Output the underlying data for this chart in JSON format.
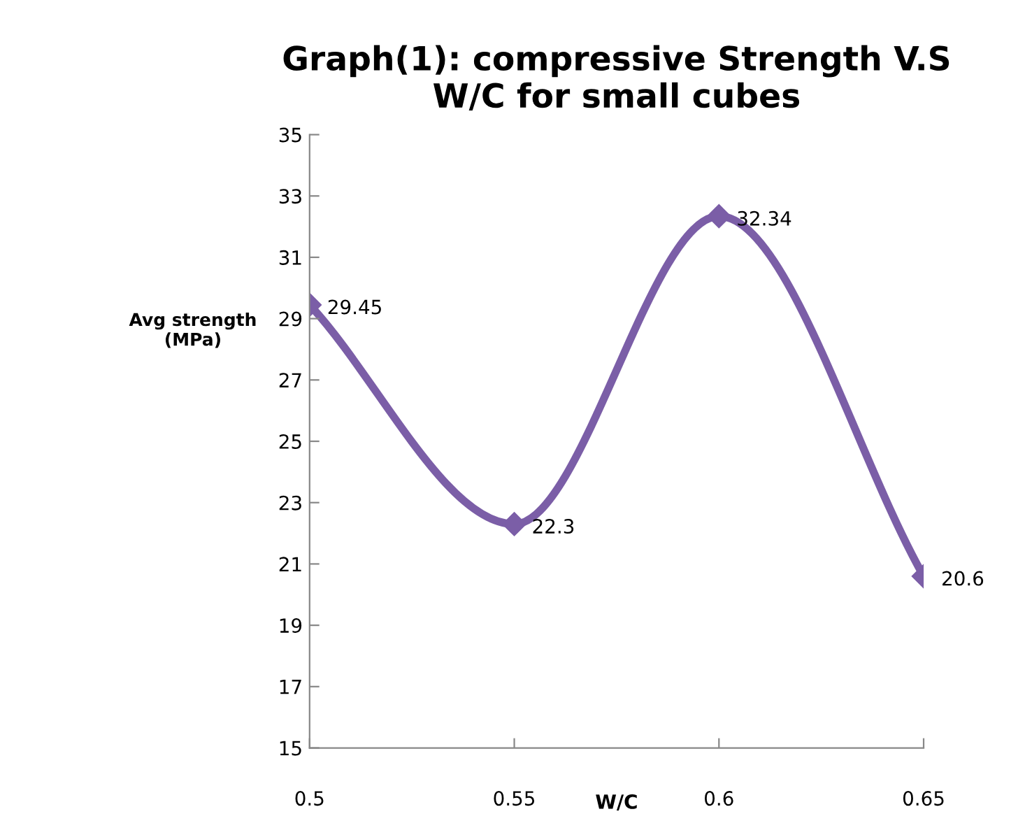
{
  "chart_data": {
    "type": "line",
    "title": "Graph(1): compressive Strength V.S\nW/C for small cubes",
    "xlabel": "W/C",
    "ylabel": "Avg strength\n(MPa)",
    "x": [
      0.5,
      0.55,
      0.6,
      0.65
    ],
    "series": [
      {
        "color": "#7b5ea7",
        "values": [
          29.45,
          22.3,
          32.34,
          20.6
        ]
      }
    ],
    "xlim": [
      0.5,
      0.65
    ],
    "xticks": [
      0.5,
      0.55,
      0.6,
      0.65
    ],
    "ylim": [
      15,
      35
    ],
    "yticks": [
      15,
      17,
      19,
      21,
      23,
      25,
      27,
      29,
      31,
      33,
      35
    ],
    "marker": "diamond",
    "line_style": "solid",
    "data_labels": true,
    "grid": false,
    "legend": false
  }
}
